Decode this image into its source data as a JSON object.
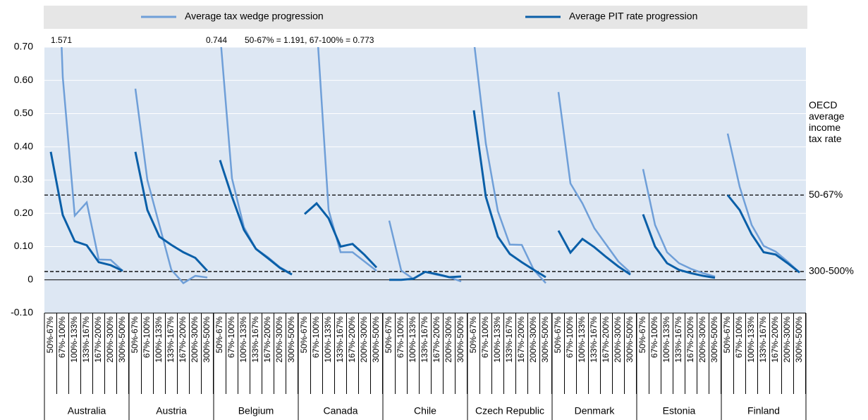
{
  "chart_data": {
    "type": "grouped-line",
    "groups": [
      "Australia",
      "Austria",
      "Belgium",
      "Canada",
      "Chile",
      "Czech Republic",
      "Denmark",
      "Estonia",
      "Finland"
    ],
    "categories": [
      "50%-67%",
      "67%-100%",
      "100%-133%",
      "133%-167%",
      "167%-200%",
      "200%-300%",
      "300%-500%"
    ],
    "series": [
      {
        "name": "Average tax wedge progression",
        "color": "#6f9fd8",
        "values": [
          [
            1.571,
            0.61,
            0.193,
            0.233,
            0.061,
            0.06,
            0.027
          ],
          [
            0.575,
            0.3,
            0.165,
            0.03,
            -0.01,
            0.012,
            0.007
          ],
          [
            0.744,
            0.305,
            0.158,
            0.093,
            0.068,
            0.038,
            0.017
          ],
          [
            1.191,
            0.773,
            0.21,
            0.083,
            0.083,
            0.055,
            0.027
          ],
          [
            0.178,
            0.028,
            0.003,
            0.024,
            0.015,
            0.008,
            -0.005
          ],
          [
            0.72,
            0.41,
            0.207,
            0.106,
            0.105,
            0.03,
            -0.01
          ],
          [
            0.565,
            0.29,
            0.23,
            0.155,
            0.105,
            0.055,
            0.022
          ],
          [
            0.333,
            0.165,
            0.083,
            0.05,
            0.033,
            0.02,
            0.01
          ],
          [
            0.44,
            0.28,
            0.165,
            0.102,
            0.085,
            0.055,
            0.022
          ]
        ]
      },
      {
        "name": "Average PIT rate progression",
        "color": "#0a5fa8",
        "values": [
          [
            0.385,
            0.195,
            0.116,
            0.104,
            0.053,
            0.044,
            0.027
          ],
          [
            0.385,
            0.21,
            0.13,
            0.105,
            0.083,
            0.066,
            0.027
          ],
          [
            0.36,
            0.25,
            0.15,
            0.093,
            0.065,
            0.036,
            0.016
          ],
          [
            0.198,
            0.23,
            0.185,
            0.1,
            0.108,
            0.075,
            0.037
          ],
          [
            0.0,
            0.0,
            0.003,
            0.024,
            0.017,
            0.008,
            0.01
          ],
          [
            0.51,
            0.25,
            0.13,
            0.078,
            0.053,
            0.03,
            0.008
          ],
          [
            0.148,
            0.082,
            0.123,
            0.098,
            0.068,
            0.04,
            0.016
          ],
          [
            0.197,
            0.1,
            0.05,
            0.03,
            0.02,
            0.012,
            0.006
          ],
          [
            0.255,
            0.21,
            0.137,
            0.083,
            0.076,
            0.05,
            0.022
          ]
        ]
      }
    ],
    "ylim": [
      -0.1,
      0.7
    ],
    "yticks": [
      {
        "value": -0.1,
        "label": "-0.10"
      },
      0,
      {
        "value": 0.1,
        "label": "0.10"
      },
      {
        "value": 0.2,
        "label": "0.20"
      },
      {
        "value": 0.3,
        "label": "0.30"
      },
      {
        "value": 0.4,
        "label": "0.40"
      },
      {
        "value": 0.5,
        "label": "0.50"
      },
      {
        "value": 0.6,
        "label": "0.60"
      },
      {
        "value": 0.7,
        "label": "0.70"
      }
    ],
    "grid": true,
    "reference_title": "OECD average income tax rate",
    "reference_lines": [
      {
        "value": 0.255,
        "label": "50-67%"
      },
      {
        "value": 0.025,
        "label": "300-500%"
      }
    ],
    "annotations": [
      "1.571",
      "0.744",
      "50-67% = 1.191, 67-100% = 0.773"
    ]
  }
}
